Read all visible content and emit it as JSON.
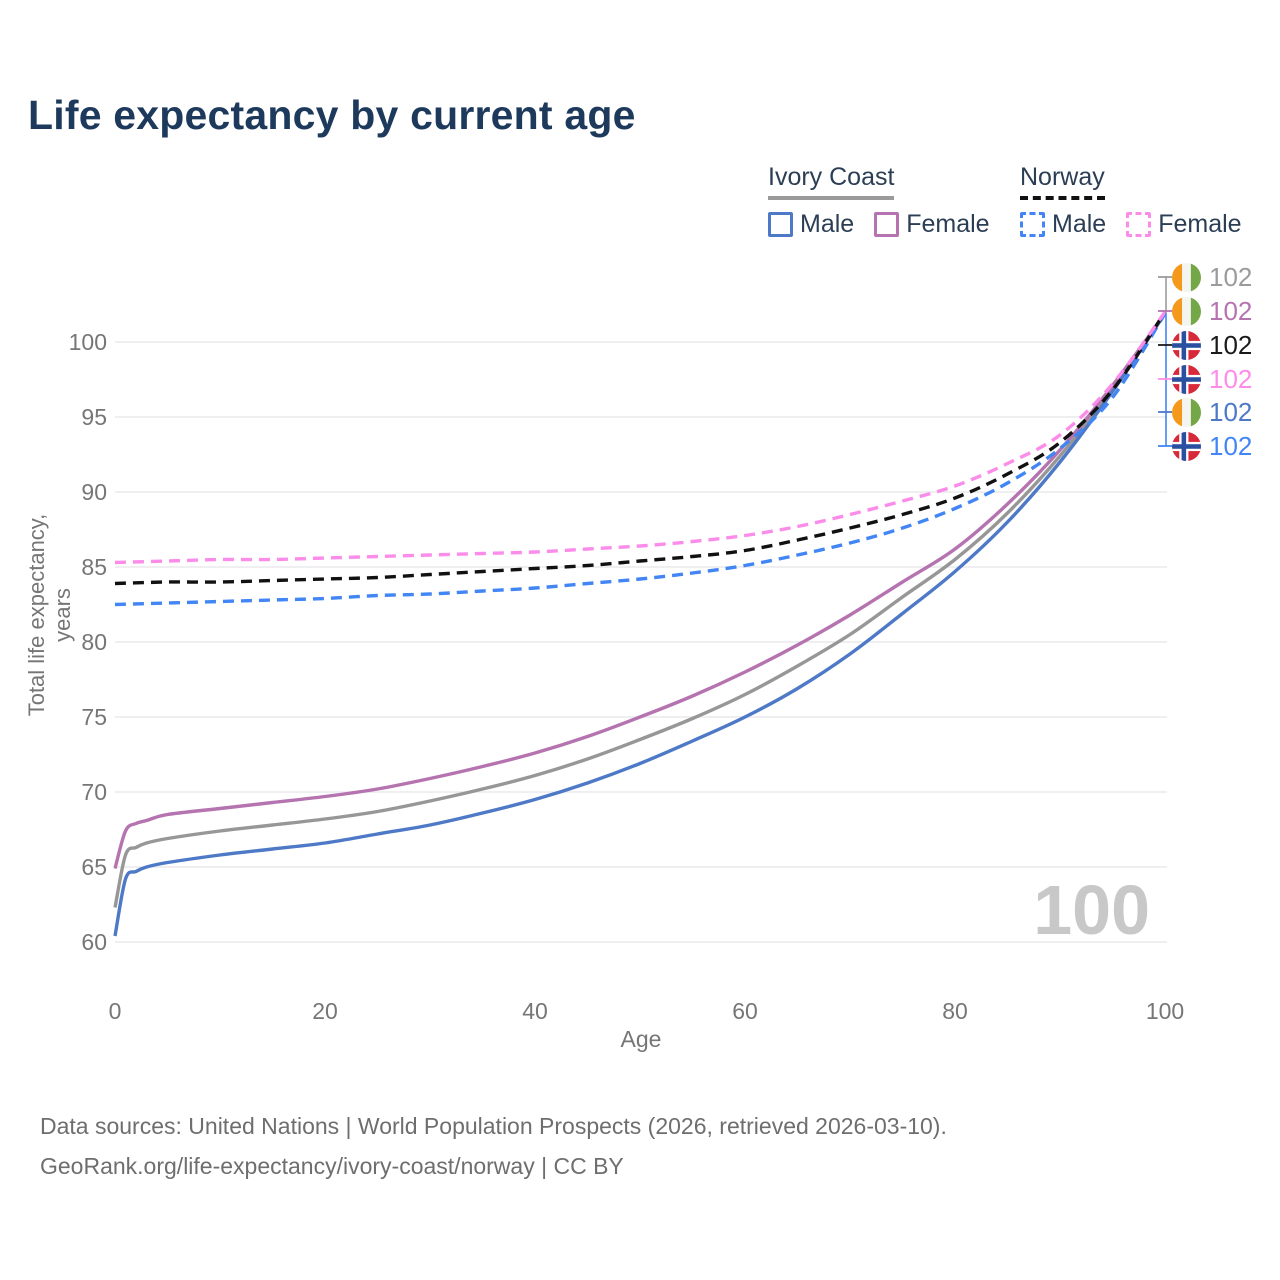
{
  "page": {
    "title": "Life expectancy by current age",
    "watermark_age": "100",
    "footer_line1": "Data sources: United Nations | World Population Prospects (2026, retrieved 2026-03-10).",
    "footer_line2": "GeoRank.org/life-expectancy/ivory-coast/norway | CC BY"
  },
  "legend": {
    "groups": [
      {
        "name": "Ivory Coast",
        "line_style": "solid",
        "underline_color": "#9a9a9a",
        "items": [
          {
            "label": "Male",
            "color": "#4d79c7",
            "dashed": false
          },
          {
            "label": "Female",
            "color": "#b573b0",
            "dashed": false
          }
        ]
      },
      {
        "name": "Norway",
        "line_style": "dashed",
        "underline_color": "#111111",
        "items": [
          {
            "label": "Male",
            "color": "#4285f4",
            "dashed": true
          },
          {
            "label": "Female",
            "color": "#fb8cea",
            "dashed": true
          }
        ]
      }
    ]
  },
  "chart_data": {
    "type": "line",
    "title": "Life expectancy by current age",
    "xlabel": "Age",
    "ylabel": "Total life expectancy, years",
    "xlim": [
      0,
      100
    ],
    "ylim": [
      56,
      103
    ],
    "x_ticks": [
      0,
      20,
      40,
      60,
      80,
      100
    ],
    "y_ticks": [
      60,
      65,
      70,
      75,
      80,
      85,
      90,
      95,
      100
    ],
    "grid": "horizontal",
    "gridline_color": "#eaeaee",
    "legend_position": "top-right",
    "series": [
      {
        "name": "Ivory Coast Combined",
        "country": "Ivory Coast",
        "sex": "both",
        "color": "#979797",
        "dashed": false,
        "points": [
          [
            0,
            62.3
          ],
          [
            1,
            65.8
          ],
          [
            2,
            66.3
          ],
          [
            3,
            66.6
          ],
          [
            5,
            66.9
          ],
          [
            10,
            67.4
          ],
          [
            15,
            67.8
          ],
          [
            20,
            68.2
          ],
          [
            25,
            68.7
          ],
          [
            30,
            69.4
          ],
          [
            35,
            70.2
          ],
          [
            40,
            71.1
          ],
          [
            45,
            72.2
          ],
          [
            50,
            73.5
          ],
          [
            55,
            74.9
          ],
          [
            60,
            76.5
          ],
          [
            65,
            78.4
          ],
          [
            70,
            80.5
          ],
          [
            75,
            83.0
          ],
          [
            80,
            85.5
          ],
          [
            85,
            88.6
          ],
          [
            90,
            92.4
          ],
          [
            95,
            96.9
          ],
          [
            100,
            101.9
          ]
        ]
      },
      {
        "name": "Ivory Coast Female",
        "country": "Ivory Coast",
        "sex": "female",
        "color": "#b573b0",
        "dashed": false,
        "points": [
          [
            0,
            64.9
          ],
          [
            1,
            67.4
          ],
          [
            2,
            67.9
          ],
          [
            3,
            68.1
          ],
          [
            5,
            68.5
          ],
          [
            10,
            68.9
          ],
          [
            15,
            69.3
          ],
          [
            20,
            69.7
          ],
          [
            25,
            70.2
          ],
          [
            30,
            70.9
          ],
          [
            35,
            71.7
          ],
          [
            40,
            72.6
          ],
          [
            45,
            73.7
          ],
          [
            50,
            75.0
          ],
          [
            55,
            76.4
          ],
          [
            60,
            78.0
          ],
          [
            65,
            79.8
          ],
          [
            70,
            81.8
          ],
          [
            75,
            84.0
          ],
          [
            80,
            86.2
          ],
          [
            85,
            89.2
          ],
          [
            90,
            92.8
          ],
          [
            95,
            97.1
          ],
          [
            100,
            101.9
          ]
        ]
      },
      {
        "name": "Ivory Coast Male",
        "country": "Ivory Coast",
        "sex": "male",
        "color": "#4d79c7",
        "dashed": false,
        "points": [
          [
            0,
            60.4
          ],
          [
            1,
            64.2
          ],
          [
            2,
            64.7
          ],
          [
            3,
            65.0
          ],
          [
            5,
            65.3
          ],
          [
            10,
            65.8
          ],
          [
            15,
            66.2
          ],
          [
            20,
            66.6
          ],
          [
            25,
            67.2
          ],
          [
            30,
            67.8
          ],
          [
            35,
            68.6
          ],
          [
            40,
            69.5
          ],
          [
            45,
            70.6
          ],
          [
            50,
            71.9
          ],
          [
            55,
            73.4
          ],
          [
            60,
            75.0
          ],
          [
            65,
            76.9
          ],
          [
            70,
            79.2
          ],
          [
            75,
            81.9
          ],
          [
            80,
            84.7
          ],
          [
            85,
            88.0
          ],
          [
            90,
            92.0
          ],
          [
            95,
            96.7
          ],
          [
            100,
            101.9
          ]
        ]
      },
      {
        "name": "Norway Male",
        "country": "Norway",
        "sex": "male",
        "color": "#4285f4",
        "dashed": true,
        "points": [
          [
            0,
            82.5
          ],
          [
            5,
            82.6
          ],
          [
            10,
            82.7
          ],
          [
            15,
            82.8
          ],
          [
            20,
            82.9
          ],
          [
            25,
            83.1
          ],
          [
            30,
            83.2
          ],
          [
            35,
            83.4
          ],
          [
            40,
            83.6
          ],
          [
            45,
            83.9
          ],
          [
            50,
            84.2
          ],
          [
            55,
            84.6
          ],
          [
            60,
            85.1
          ],
          [
            65,
            85.8
          ],
          [
            70,
            86.6
          ],
          [
            75,
            87.6
          ],
          [
            80,
            88.9
          ],
          [
            85,
            90.6
          ],
          [
            90,
            92.9
          ],
          [
            95,
            96.3
          ],
          [
            100,
            101.9
          ]
        ]
      },
      {
        "name": "Norway Combined",
        "country": "Norway",
        "sex": "both",
        "color": "#111111",
        "dashed": true,
        "points": [
          [
            0,
            83.9
          ],
          [
            5,
            84.0
          ],
          [
            10,
            84.0
          ],
          [
            15,
            84.1
          ],
          [
            20,
            84.2
          ],
          [
            25,
            84.3
          ],
          [
            30,
            84.5
          ],
          [
            35,
            84.7
          ],
          [
            40,
            84.9
          ],
          [
            45,
            85.1
          ],
          [
            50,
            85.4
          ],
          [
            55,
            85.7
          ],
          [
            60,
            86.1
          ],
          [
            65,
            86.8
          ],
          [
            70,
            87.6
          ],
          [
            75,
            88.5
          ],
          [
            80,
            89.6
          ],
          [
            85,
            91.2
          ],
          [
            90,
            93.3
          ],
          [
            95,
            96.8
          ],
          [
            100,
            102.0
          ]
        ]
      },
      {
        "name": "Norway Female",
        "country": "Norway",
        "sex": "female",
        "color": "#fb8cea",
        "dashed": true,
        "points": [
          [
            0,
            85.3
          ],
          [
            5,
            85.4
          ],
          [
            10,
            85.5
          ],
          [
            15,
            85.5
          ],
          [
            20,
            85.6
          ],
          [
            25,
            85.7
          ],
          [
            30,
            85.8
          ],
          [
            35,
            85.9
          ],
          [
            40,
            86.0
          ],
          [
            45,
            86.2
          ],
          [
            50,
            86.4
          ],
          [
            55,
            86.7
          ],
          [
            60,
            87.1
          ],
          [
            65,
            87.7
          ],
          [
            70,
            88.5
          ],
          [
            75,
            89.4
          ],
          [
            80,
            90.4
          ],
          [
            85,
            91.9
          ],
          [
            90,
            93.8
          ],
          [
            95,
            97.2
          ],
          [
            100,
            102.0
          ]
        ]
      }
    ],
    "end_labels": [
      {
        "flag": "ivory-coast",
        "value": "102",
        "color": "#9b9b9b",
        "series": "Ivory Coast Combined"
      },
      {
        "flag": "ivory-coast",
        "value": "102",
        "color": "#b573b0",
        "series": "Ivory Coast Female"
      },
      {
        "flag": "norway",
        "value": "102",
        "color": "#1a1a1a",
        "series": "Norway Combined"
      },
      {
        "flag": "norway",
        "value": "102",
        "color": "#ff8ce8",
        "series": "Norway Female"
      },
      {
        "flag": "ivory-coast",
        "value": "102",
        "color": "#4d79c7",
        "series": "Ivory Coast Male"
      },
      {
        "flag": "norway",
        "value": "102",
        "color": "#4285f4",
        "series": "Norway Male"
      }
    ]
  }
}
